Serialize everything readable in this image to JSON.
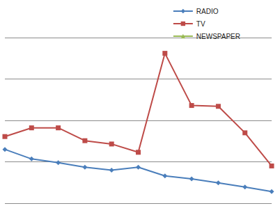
{
  "chart_data": {
    "type": "line",
    "categories": [
      null,
      null,
      null,
      null,
      null,
      null,
      null,
      null,
      null,
      null,
      null
    ],
    "series": [
      {
        "name": "RADIO",
        "color": "#4a7ebb",
        "marker": "diamond",
        "values": [
          13.0,
          10.7,
          9.8,
          8.7,
          8.0,
          8.7,
          6.6,
          5.9,
          4.9,
          3.9,
          2.8
        ]
      },
      {
        "name": "TV",
        "color": "#be4b48",
        "marker": "square",
        "values": [
          16.1,
          18.2,
          18.2,
          15.1,
          14.3,
          12.3,
          36.2,
          23.6,
          23.4,
          17.0,
          9.0
        ]
      },
      {
        "name": "NEWSPAPER",
        "color": "#98b954",
        "marker": "triangle",
        "values": [
          null,
          null,
          null,
          null,
          null,
          null,
          null,
          null,
          null,
          null,
          null
        ]
      }
    ],
    "ylim": [
      0,
      40
    ],
    "yticks": [
      0,
      10,
      20,
      30,
      40
    ],
    "grid": true,
    "legend": "top-right",
    "tick_labels": false
  }
}
